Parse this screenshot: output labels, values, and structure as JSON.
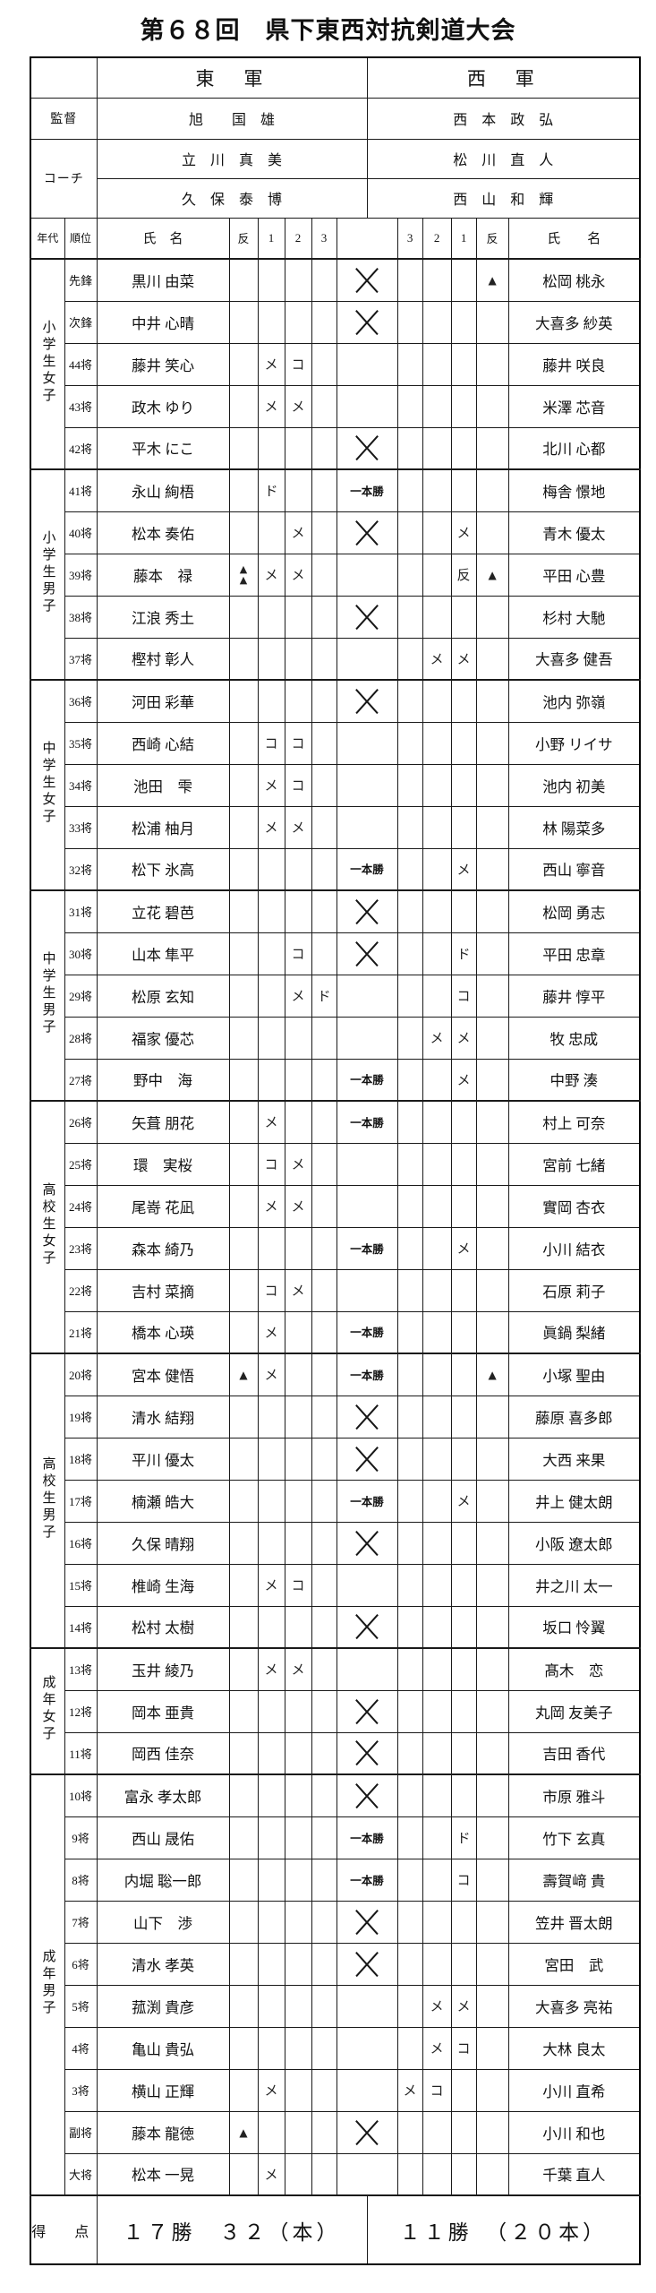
{
  "title": "第６８回　県下東西対抗剣道大会",
  "header": {
    "east_team": "東　軍",
    "west_team": "西　軍",
    "kantoku_label": "監督",
    "coach_label": "コーチ",
    "east_kantoku": "旭　　国　雄",
    "west_kantoku": "西　本　政　弘",
    "east_coaches": [
      "立　川　真　美",
      "久　保　泰　博"
    ],
    "west_coaches": [
      "松　川　直　人",
      "西　山　和　輝"
    ]
  },
  "columns": {
    "age": "年代",
    "rank": "順位",
    "name_east": "氏　名",
    "han_east": "反",
    "e1": "1",
    "e2": "2",
    "e3": "3",
    "center": "",
    "w3": "3",
    "w2": "2",
    "w1": "1",
    "han_west": "反",
    "name_west": "氏　　名"
  },
  "marks_legend": {
    "draw_mark": "✕",
    "ippon_win": "一本勝",
    "hansoku": "▲",
    "men": "メ",
    "kote": "コ",
    "do": "ド",
    "han": "反"
  },
  "groups": [
    {
      "label": "小学生女子",
      "count": 5
    },
    {
      "label": "小学生男子",
      "count": 5
    },
    {
      "label": "中学生女子",
      "count": 5
    },
    {
      "label": "中学生男子",
      "count": 5
    },
    {
      "label": "高校生女子",
      "count": 6
    },
    {
      "label": "高校生男子",
      "count": 7
    },
    {
      "label": "成年女子",
      "count": 3
    },
    {
      "label": "成年男子",
      "count": 10
    }
  ],
  "rows": [
    {
      "p": "先鋒",
      "e": "黒川 由菜",
      "c": "✕",
      "wh": "▲",
      "w": "松岡 桃永"
    },
    {
      "p": "次鋒",
      "e": "中井 心晴",
      "c": "✕",
      "w": "大喜多 紗英"
    },
    {
      "p": "44将",
      "e": "藤井 笑心",
      "e1": "メ",
      "e2": "コ",
      "w": "藤井 咲良"
    },
    {
      "p": "43将",
      "e": "政木 ゆり",
      "e1": "メ",
      "e2": "メ",
      "w": "米澤 芯音"
    },
    {
      "p": "42将",
      "e": "平木 にこ",
      "c": "✕",
      "w": "北川 心都"
    },
    {
      "p": "41将",
      "e": "永山 絢梧",
      "e1": "ド",
      "c": "一本勝",
      "w": "梅舎 憬地"
    },
    {
      "p": "40将",
      "e": "松本 奏佑",
      "e2": "メ",
      "c": "✕",
      "w1": "メ",
      "w": "青木 優太"
    },
    {
      "p": "39将",
      "e": "藤本　禄",
      "eh": "▲▲",
      "e1": "メ",
      "e2": "メ",
      "w1": "反",
      "wh": "▲",
      "w": "平田 心豊"
    },
    {
      "p": "38将",
      "e": "江浪 秀土",
      "c": "✕",
      "w": "杉村 大馳"
    },
    {
      "p": "37将",
      "e": "樫村 彰人",
      "w2": "メ",
      "w1": "メ",
      "w": "大喜多 健吾"
    },
    {
      "p": "36将",
      "e": "河田 彩華",
      "c": "✕",
      "w": "池内 弥嶺"
    },
    {
      "p": "35将",
      "e": "西崎 心結",
      "e1": "コ",
      "e2": "コ",
      "w": "小野 リイサ"
    },
    {
      "p": "34将",
      "e": "池田　雫",
      "e1": "メ",
      "e2": "コ",
      "w": "池内 初美"
    },
    {
      "p": "33将",
      "e": "松浦 柚月",
      "e1": "メ",
      "e2": "メ",
      "w": "林 陽菜多"
    },
    {
      "p": "32将",
      "e": "松下 氷高",
      "c": "一本勝",
      "w1": "メ",
      "w": "西山 寧音"
    },
    {
      "p": "31将",
      "e": "立花 碧芭",
      "c": "✕",
      "w": "松岡 勇志"
    },
    {
      "p": "30将",
      "e": "山本 隼平",
      "e2": "コ",
      "c": "✕",
      "w1": "ド",
      "w": "平田 忠章"
    },
    {
      "p": "29将",
      "e": "松原 玄知",
      "e2": "メ",
      "e3": "ド",
      "w1": "コ",
      "w": "藤井 惇平"
    },
    {
      "p": "28将",
      "e": "福家 優芯",
      "w2": "メ",
      "w1": "メ",
      "w": "牧 忠成"
    },
    {
      "p": "27将",
      "e": "野中　海",
      "c": "一本勝",
      "w1": "メ",
      "w": "中野 湊"
    },
    {
      "p": "26将",
      "e": "矢葺 朋花",
      "e1": "メ",
      "c": "一本勝",
      "w": "村上 可奈"
    },
    {
      "p": "25将",
      "e": "環　実桜",
      "e1": "コ",
      "e2": "メ",
      "w": "宮前 七緒"
    },
    {
      "p": "24将",
      "e": "尾嵜 花凪",
      "e1": "メ",
      "e2": "メ",
      "w": "實岡 杏衣"
    },
    {
      "p": "23将",
      "e": "森本 綺乃",
      "c": "一本勝",
      "w1": "メ",
      "w": "小川 結衣"
    },
    {
      "p": "22将",
      "e": "吉村 菜摘",
      "e1": "コ",
      "e2": "メ",
      "w": "石原 莉子"
    },
    {
      "p": "21将",
      "e": "橋本 心瑛",
      "e1": "メ",
      "c": "一本勝",
      "w": "眞鍋 梨緒"
    },
    {
      "p": "20将",
      "e": "宮本 健悟",
      "eh": "▲",
      "e1": "メ",
      "c": "一本勝",
      "wh": "▲",
      "w": "小塚 聖由"
    },
    {
      "p": "19将",
      "e": "清水 結翔",
      "c": "✕",
      "w": "藤原 喜多郎"
    },
    {
      "p": "18将",
      "e": "平川 優太",
      "c": "✕",
      "w": "大西 来果"
    },
    {
      "p": "17将",
      "e": "楠瀬 皓大",
      "c": "一本勝",
      "w1": "メ",
      "w": "井上 健太朗"
    },
    {
      "p": "16将",
      "e": "久保 晴翔",
      "c": "✕",
      "w": "小阪 遼太郎"
    },
    {
      "p": "15将",
      "e": "椎崎 生海",
      "e1": "メ",
      "e2": "コ",
      "w": "井之川 太一"
    },
    {
      "p": "14将",
      "e": "松村 太樹",
      "c": "✕",
      "w": "坂口 怜翼"
    },
    {
      "p": "13将",
      "e": "玉井 綾乃",
      "e1": "メ",
      "e2": "メ",
      "w": "髙木　恋"
    },
    {
      "p": "12将",
      "e": "岡本 亜貴",
      "c": "✕",
      "w": "丸岡 友美子"
    },
    {
      "p": "11将",
      "e": "岡西 佳奈",
      "c": "✕",
      "w": "吉田 香代"
    },
    {
      "p": "10将",
      "e": "富永 孝太郎",
      "c": "✕",
      "w": "市原 雅斗"
    },
    {
      "p": "9将",
      "e": "西山 晟佑",
      "c": "一本勝",
      "w1": "ド",
      "w": "竹下 玄真"
    },
    {
      "p": "8将",
      "e": "内堀 聡一郎",
      "c": "一本勝",
      "w1": "コ",
      "w": "壽賀﨑 貴"
    },
    {
      "p": "7将",
      "e": "山下　渉",
      "c": "✕",
      "w": "笠井 晋太朗"
    },
    {
      "p": "6将",
      "e": "清水 孝英",
      "c": "✕",
      "w": "宮田　武"
    },
    {
      "p": "5将",
      "e": "菰渕 貴彦",
      "w2": "メ",
      "w1": "メ",
      "w": "大喜多 亮祐"
    },
    {
      "p": "4将",
      "e": "亀山 貴弘",
      "w2": "メ",
      "w1": "コ",
      "w": "大林 良太"
    },
    {
      "p": "3将",
      "e": "横山 正輝",
      "e1": "メ",
      "w3": "メ",
      "w2": "コ",
      "w": "小川 直希"
    },
    {
      "p": "副将",
      "e": "藤本 龍徳",
      "eh": "▲",
      "c": "✕",
      "w": "小川 和也"
    },
    {
      "p": "大将",
      "e": "松本 一晃",
      "e1": "メ",
      "w": "千葉 直人"
    }
  ],
  "footer": {
    "label": "得　点",
    "east_score": "１７勝　３２（本）",
    "west_score": "１１勝　（２０本）"
  }
}
